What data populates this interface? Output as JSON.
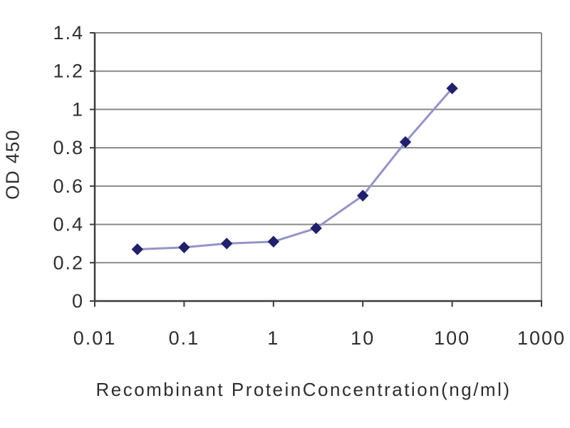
{
  "chart_data": {
    "type": "line",
    "title": "",
    "xlabel": "Recombinant ProteinConcentration(ng/ml)",
    "ylabel": "OD 450",
    "x_scale": "log",
    "xlim": [
      0.01,
      1000
    ],
    "ylim": [
      0,
      1.4
    ],
    "grid": true,
    "legend": "none",
    "x": [
      0.03,
      0.1,
      0.3,
      1,
      3,
      10,
      30,
      100
    ],
    "y": [
      0.27,
      0.28,
      0.3,
      0.31,
      0.38,
      0.55,
      0.83,
      1.11
    ],
    "x_ticks": [
      0.01,
      0.1,
      1,
      10,
      100,
      1000
    ],
    "x_tick_labels": [
      "0.01",
      "0.1",
      "1",
      "10",
      "100",
      "1000"
    ],
    "y_ticks": [
      0,
      0.2,
      0.4,
      0.6,
      0.8,
      1,
      1.2,
      1.4
    ],
    "y_tick_labels": [
      "0",
      "0.2",
      "0.4",
      "0.6",
      "0.8",
      "1",
      "1.2",
      "1.4"
    ],
    "colors": {
      "line": "#9494c8",
      "marker": "#20206b",
      "gridline": "#8a8a8a",
      "axis": "#3d3d3d",
      "plot_border": "#8a8a8a",
      "tick_text": "#2e2e2e",
      "background": "#ffffff"
    },
    "marker_shape": "diamond"
  }
}
